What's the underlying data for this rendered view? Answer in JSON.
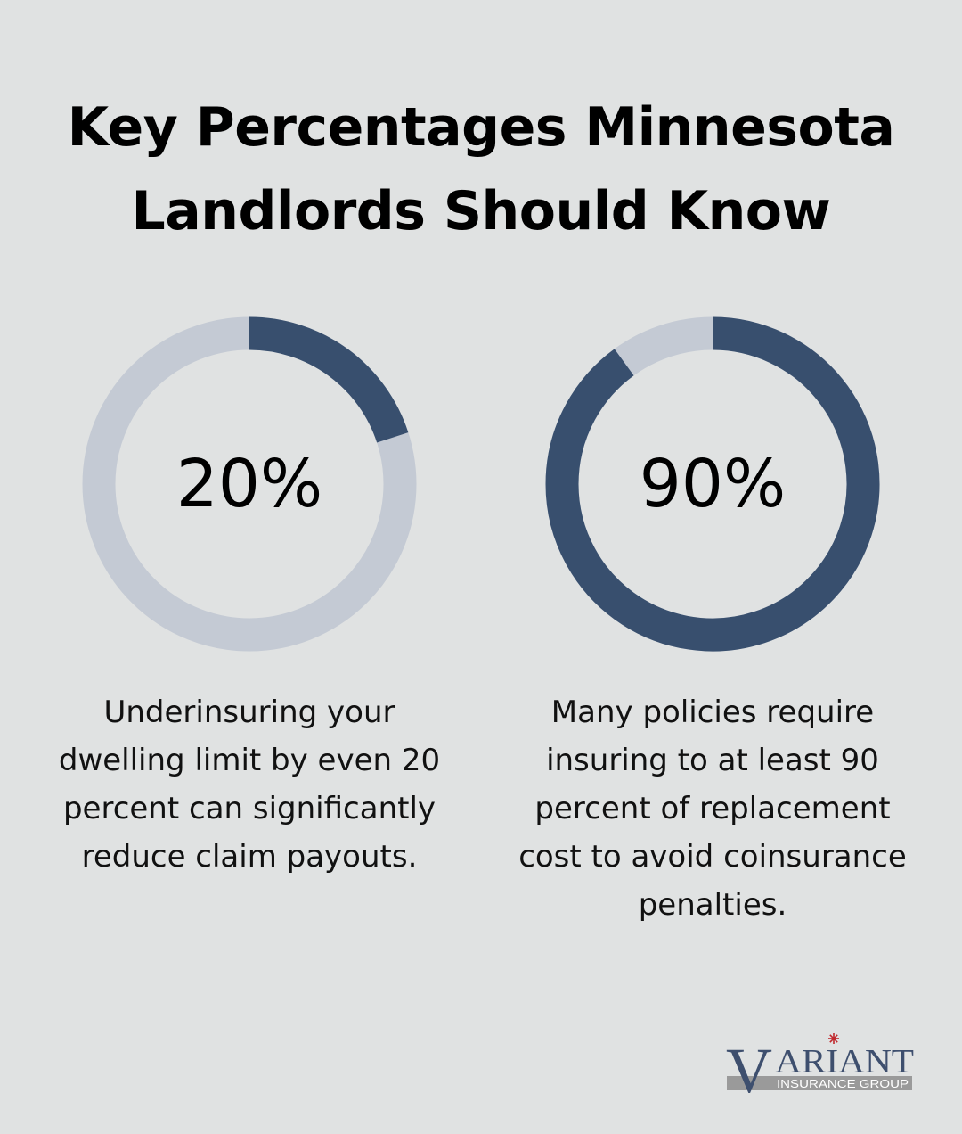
{
  "title_lines": [
    "Key Percentages Minnesota",
    "Landlords Should Know"
  ],
  "colors": {
    "background": "#e0e2e2",
    "ring_fill": "#384f6e",
    "ring_track": "#c4cad4",
    "logo_text": "#3e4f6e",
    "logo_star": "#c0282d",
    "logo_band": "#9a9a9a"
  },
  "chart_data": [
    {
      "type": "pie",
      "variant": "donut",
      "value_percent": 20,
      "center_label": "20%",
      "description_lines": [
        "Underinsuring your",
        "dwelling limit by even 20",
        "percent can significantly",
        "reduce claim payouts."
      ]
    },
    {
      "type": "pie",
      "variant": "donut",
      "value_percent": 90,
      "center_label": "90%",
      "description_lines": [
        "Many policies require",
        "insuring to at least 90",
        "percent of replacement",
        "cost to avoid coinsurance",
        "penalties."
      ]
    }
  ],
  "logo": {
    "name_initial": "V",
    "name_rest": "ARIANT",
    "subtitle": "INSURANCE GROUP"
  }
}
